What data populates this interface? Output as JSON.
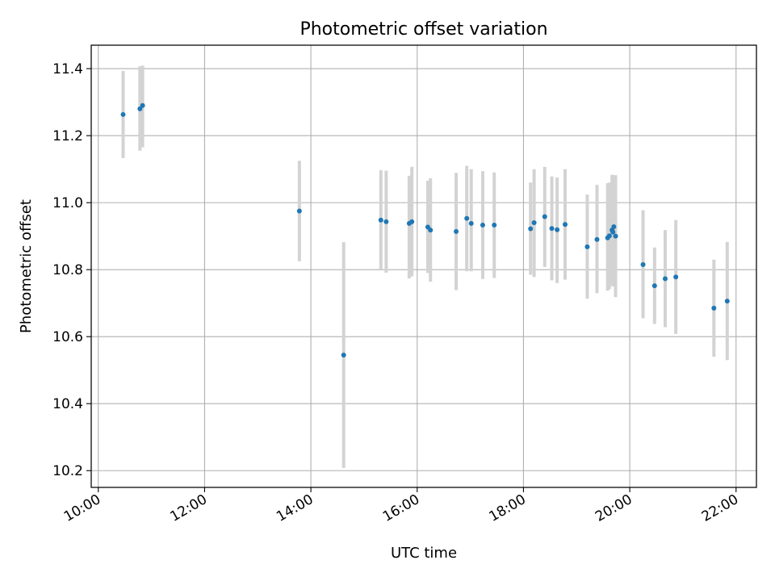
{
  "chart_data": {
    "type": "scatter",
    "title": "Photometric offset variation",
    "xlabel": "UTC time",
    "ylabel": "Photometric offset",
    "xlim": [
      "09:52",
      "22:23"
    ],
    "ylim": [
      10.15,
      11.47
    ],
    "x_ticks": [
      "10:00",
      "12:00",
      "14:00",
      "16:00",
      "18:00",
      "20:00",
      "22:00"
    ],
    "y_ticks": [
      "10.2",
      "10.4",
      "10.6",
      "10.8",
      "11.0",
      "11.2",
      "11.4"
    ],
    "grid": true,
    "legend": null,
    "colors": {
      "points": "#1f77b4",
      "error_bars": "#d3d3d3",
      "grid": "#b0b0b0"
    },
    "points": [
      {
        "x": "10:28",
        "y": 11.263,
        "low": 11.133,
        "high": 11.393
      },
      {
        "x": "10:47",
        "y": 11.28,
        "low": 11.155,
        "high": 11.407
      },
      {
        "x": "10:50",
        "y": 11.29,
        "low": 11.165,
        "high": 11.409
      },
      {
        "x": "13:47",
        "y": 10.975,
        "low": 10.825,
        "high": 11.125
      },
      {
        "x": "14:37",
        "y": 10.545,
        "low": 10.208,
        "high": 10.882
      },
      {
        "x": "15:19",
        "y": 10.948,
        "low": 10.8,
        "high": 11.097
      },
      {
        "x": "15:25",
        "y": 10.943,
        "low": 10.791,
        "high": 11.095
      },
      {
        "x": "15:51",
        "y": 10.938,
        "low": 10.774,
        "high": 11.08
      },
      {
        "x": "15:54",
        "y": 10.943,
        "low": 10.78,
        "high": 11.107
      },
      {
        "x": "16:12",
        "y": 10.927,
        "low": 10.79,
        "high": 11.065
      },
      {
        "x": "16:15",
        "y": 10.918,
        "low": 10.764,
        "high": 11.073
      },
      {
        "x": "16:44",
        "y": 10.914,
        "low": 10.739,
        "high": 11.089
      },
      {
        "x": "16:56",
        "y": 10.953,
        "low": 10.795,
        "high": 11.11
      },
      {
        "x": "17:01",
        "y": 10.938,
        "low": 10.795,
        "high": 11.1
      },
      {
        "x": "17:14",
        "y": 10.933,
        "low": 10.772,
        "high": 11.094
      },
      {
        "x": "17:27",
        "y": 10.933,
        "low": 10.775,
        "high": 11.09
      },
      {
        "x": "18:08",
        "y": 10.922,
        "low": 10.785,
        "high": 11.06
      },
      {
        "x": "18:12",
        "y": 10.94,
        "low": 10.778,
        "high": 11.1
      },
      {
        "x": "18:24",
        "y": 10.958,
        "low": 10.808,
        "high": 11.107
      },
      {
        "x": "18:32",
        "y": 10.923,
        "low": 10.768,
        "high": 11.078
      },
      {
        "x": "18:38",
        "y": 10.919,
        "low": 10.76,
        "high": 11.075
      },
      {
        "x": "18:47",
        "y": 10.935,
        "low": 10.77,
        "high": 11.1
      },
      {
        "x": "19:12",
        "y": 10.868,
        "low": 10.713,
        "high": 11.024
      },
      {
        "x": "19:23",
        "y": 10.89,
        "low": 10.73,
        "high": 11.053
      },
      {
        "x": "19:35",
        "y": 10.895,
        "low": 10.737,
        "high": 11.058
      },
      {
        "x": "19:37",
        "y": 10.901,
        "low": 10.742,
        "high": 11.06
      },
      {
        "x": "19:40",
        "y": 10.918,
        "low": 10.756,
        "high": 11.083
      },
      {
        "x": "19:41",
        "y": 10.912,
        "low": 10.75,
        "high": 11.078
      },
      {
        "x": "19:42",
        "y": 10.928,
        "low": 10.77,
        "high": 11.082
      },
      {
        "x": "19:44",
        "y": 10.9,
        "low": 10.718,
        "high": 11.082
      },
      {
        "x": "20:15",
        "y": 10.815,
        "low": 10.655,
        "high": 10.977
      },
      {
        "x": "20:28",
        "y": 10.752,
        "low": 10.638,
        "high": 10.866
      },
      {
        "x": "20:40",
        "y": 10.773,
        "low": 10.628,
        "high": 10.918
      },
      {
        "x": "20:52",
        "y": 10.778,
        "low": 10.608,
        "high": 10.948
      },
      {
        "x": "21:35",
        "y": 10.685,
        "low": 10.54,
        "high": 10.83
      },
      {
        "x": "21:50",
        "y": 10.706,
        "low": 10.53,
        "high": 10.883
      }
    ]
  }
}
